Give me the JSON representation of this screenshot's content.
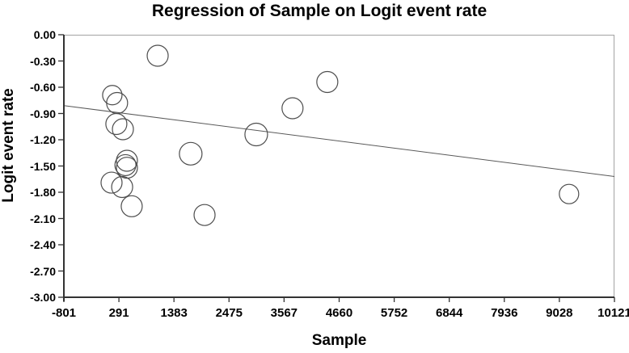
{
  "chart_data": {
    "type": "scatter",
    "title": "Regression of Sample on Logit event rate",
    "xlabel": "Sample",
    "ylabel": "Logit event rate",
    "xlim": [
      -801,
      10121
    ],
    "ylim": [
      -3.0,
      0.0
    ],
    "x_ticks": [
      -801,
      291,
      1383,
      2475,
      3567,
      4660,
      5752,
      6844,
      7936,
      9028,
      10121
    ],
    "x_tick_labels": [
      "-801",
      "291",
      "1383",
      "2475",
      "3567",
      "4660",
      "5752",
      "6844",
      "7936",
      "9028",
      "10121"
    ],
    "y_ticks": [
      0.0,
      -0.3,
      -0.6,
      -0.9,
      -1.2,
      -1.5,
      -1.8,
      -2.1,
      -2.4,
      -2.7,
      -3.0
    ],
    "y_tick_labels": [
      "0.00",
      "-0.30",
      "-0.60",
      "-0.90",
      "-1.20",
      "-1.50",
      "-1.80",
      "-2.10",
      "-2.40",
      "-2.70",
      "-3.00"
    ],
    "grid": false,
    "legend": null,
    "marker": "open-circle",
    "points": [
      {
        "x": 1060,
        "y": -0.24,
        "r": 13
      },
      {
        "x": 160,
        "y": -0.69,
        "r": 12
      },
      {
        "x": 255,
        "y": -0.78,
        "r": 13
      },
      {
        "x": 240,
        "y": -1.02,
        "r": 13
      },
      {
        "x": 370,
        "y": -1.08,
        "r": 13
      },
      {
        "x": 450,
        "y": -1.44,
        "r": 13
      },
      {
        "x": 420,
        "y": -1.49,
        "r": 13
      },
      {
        "x": 450,
        "y": -1.52,
        "r": 13
      },
      {
        "x": 145,
        "y": -1.69,
        "r": 13
      },
      {
        "x": 355,
        "y": -1.74,
        "r": 13
      },
      {
        "x": 545,
        "y": -1.96,
        "r": 13
      },
      {
        "x": 1715,
        "y": -1.36,
        "r": 14
      },
      {
        "x": 1990,
        "y": -2.06,
        "r": 13
      },
      {
        "x": 3015,
        "y": -1.14,
        "r": 14
      },
      {
        "x": 3735,
        "y": -0.84,
        "r": 13
      },
      {
        "x": 4425,
        "y": -0.54,
        "r": 13
      },
      {
        "x": 9220,
        "y": -1.82,
        "r": 12
      }
    ],
    "regression_line": {
      "x1": -801,
      "y1": -0.81,
      "x2": 10121,
      "y2": -1.62
    },
    "colors": {
      "marker_stroke": "#4d4d4d",
      "line": "#595959",
      "axis": "#333333",
      "border": "#a3a3a3",
      "text": "#000000",
      "background": "#ffffff"
    }
  }
}
